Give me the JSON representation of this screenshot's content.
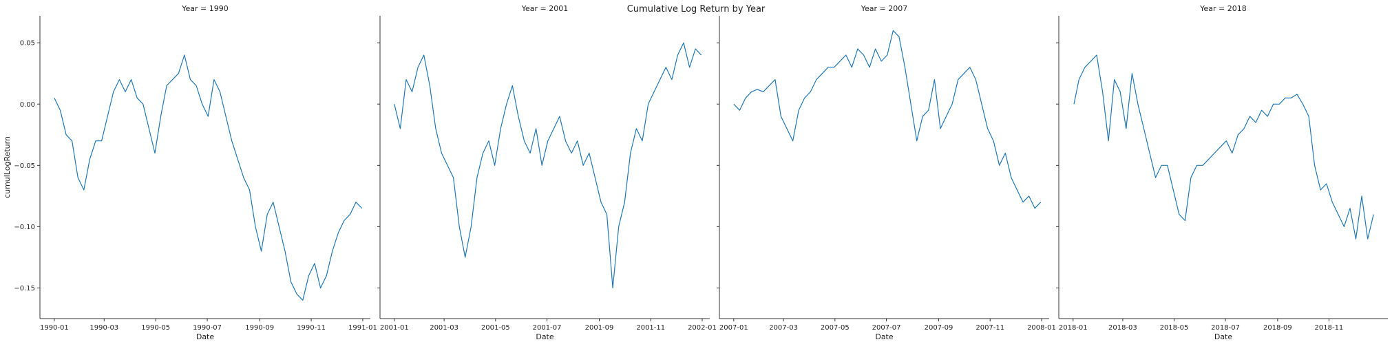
{
  "chart_data": {
    "type": "line",
    "title": "Cumulative Log Return by Year",
    "xlabel": "Date",
    "ylabel": "cumulLogReturn",
    "ylim": [
      -0.175,
      0.072
    ],
    "y_ticks": [
      0.05,
      0.0,
      -0.05,
      -0.1,
      -0.15
    ],
    "y_tick_labels": [
      "0.05",
      "0.00",
      "−0.05",
      "−0.10",
      "−0.15"
    ],
    "grid": false,
    "legend": "none",
    "color": "#1f77b4",
    "facets": [
      {
        "title": "Year = 1990",
        "x_ticks": [
          "1990-01-01",
          "1990-03-01",
          "1990-05-01",
          "1990-07-01",
          "1990-09-01",
          "1990-11-01",
          "1991-01-01"
        ],
        "x_tick_labels": [
          "1990-01",
          "1990-03",
          "1990-05",
          "1990-07",
          "1990-09",
          "1990-11",
          "1991-01"
        ],
        "xlim": [
          "1989-12-15",
          "1991-01-10"
        ],
        "x": [
          "1990-01-01",
          "1990-01-08",
          "1990-01-15",
          "1990-01-22",
          "1990-01-29",
          "1990-02-05",
          "1990-02-12",
          "1990-02-19",
          "1990-02-26",
          "1990-03-05",
          "1990-03-12",
          "1990-03-19",
          "1990-03-26",
          "1990-04-02",
          "1990-04-09",
          "1990-04-16",
          "1990-04-23",
          "1990-04-30",
          "1990-05-07",
          "1990-05-14",
          "1990-05-21",
          "1990-05-28",
          "1990-06-04",
          "1990-06-11",
          "1990-06-18",
          "1990-06-25",
          "1990-07-02",
          "1990-07-09",
          "1990-07-16",
          "1990-07-23",
          "1990-07-30",
          "1990-08-06",
          "1990-08-13",
          "1990-08-20",
          "1990-08-27",
          "1990-09-03",
          "1990-09-10",
          "1990-09-17",
          "1990-09-24",
          "1990-10-01",
          "1990-10-08",
          "1990-10-15",
          "1990-10-22",
          "1990-10-29",
          "1990-11-05",
          "1990-11-12",
          "1990-11-19",
          "1990-11-26",
          "1990-12-03",
          "1990-12-10",
          "1990-12-17",
          "1990-12-24",
          "1990-12-31"
        ],
        "y": [
          0.005,
          -0.005,
          -0.025,
          -0.03,
          -0.06,
          -0.07,
          -0.045,
          -0.03,
          -0.03,
          -0.01,
          0.01,
          0.02,
          0.01,
          0.02,
          0.005,
          0.0,
          -0.02,
          -0.04,
          -0.01,
          0.015,
          0.02,
          0.025,
          0.04,
          0.02,
          0.015,
          0.0,
          -0.01,
          0.02,
          0.01,
          -0.01,
          -0.03,
          -0.045,
          -0.06,
          -0.07,
          -0.1,
          -0.12,
          -0.09,
          -0.08,
          -0.1,
          -0.12,
          -0.145,
          -0.155,
          -0.16,
          -0.14,
          -0.13,
          -0.15,
          -0.14,
          -0.12,
          -0.105,
          -0.095,
          -0.09,
          -0.08,
          -0.085
        ]
      },
      {
        "title": "Year = 2001",
        "x_ticks": [
          "2001-01-01",
          "2001-03-01",
          "2001-05-01",
          "2001-07-01",
          "2001-09-01",
          "2001-11-01",
          "2002-01-01"
        ],
        "x_tick_labels": [
          "2001-01",
          "2001-03",
          "2001-05",
          "2001-07",
          "2001-09",
          "2001-11",
          "2002-01"
        ],
        "xlim": [
          "2000-12-15",
          "2002-01-10"
        ],
        "x": [
          "2001-01-01",
          "2001-01-08",
          "2001-01-15",
          "2001-01-22",
          "2001-01-29",
          "2001-02-05",
          "2001-02-12",
          "2001-02-19",
          "2001-02-26",
          "2001-03-05",
          "2001-03-12",
          "2001-03-19",
          "2001-03-26",
          "2001-04-02",
          "2001-04-09",
          "2001-04-16",
          "2001-04-23",
          "2001-04-30",
          "2001-05-07",
          "2001-05-14",
          "2001-05-21",
          "2001-05-28",
          "2001-06-04",
          "2001-06-11",
          "2001-06-18",
          "2001-06-25",
          "2001-07-02",
          "2001-07-09",
          "2001-07-16",
          "2001-07-23",
          "2001-07-30",
          "2001-08-06",
          "2001-08-13",
          "2001-08-20",
          "2001-08-27",
          "2001-09-03",
          "2001-09-10",
          "2001-09-17",
          "2001-09-24",
          "2001-10-01",
          "2001-10-08",
          "2001-10-15",
          "2001-10-22",
          "2001-10-29",
          "2001-11-05",
          "2001-11-12",
          "2001-11-19",
          "2001-11-26",
          "2001-12-03",
          "2001-12-10",
          "2001-12-17",
          "2001-12-24",
          "2001-12-31"
        ],
        "y": [
          0.0,
          -0.02,
          0.02,
          0.01,
          0.03,
          0.04,
          0.015,
          -0.02,
          -0.04,
          -0.05,
          -0.06,
          -0.1,
          -0.125,
          -0.1,
          -0.06,
          -0.04,
          -0.03,
          -0.05,
          -0.02,
          0.0,
          0.015,
          -0.01,
          -0.03,
          -0.04,
          -0.02,
          -0.05,
          -0.03,
          -0.02,
          -0.01,
          -0.03,
          -0.04,
          -0.03,
          -0.05,
          -0.04,
          -0.06,
          -0.08,
          -0.09,
          -0.15,
          -0.1,
          -0.08,
          -0.04,
          -0.02,
          -0.03,
          0.0,
          0.01,
          0.02,
          0.03,
          0.02,
          0.04,
          0.05,
          0.03,
          0.045,
          0.04
        ]
      },
      {
        "title": "Year = 2007",
        "x_ticks": [
          "2007-01-01",
          "2007-03-01",
          "2007-05-01",
          "2007-07-01",
          "2007-09-01",
          "2007-11-01",
          "2008-01-01"
        ],
        "x_tick_labels": [
          "2007-01",
          "2007-03",
          "2007-05",
          "2007-07",
          "2007-09",
          "2007-11",
          "2008-01"
        ],
        "xlim": [
          "2006-12-15",
          "2008-01-10"
        ],
        "x": [
          "2007-01-01",
          "2007-01-08",
          "2007-01-15",
          "2007-01-22",
          "2007-01-29",
          "2007-02-05",
          "2007-02-12",
          "2007-02-19",
          "2007-02-26",
          "2007-03-05",
          "2007-03-12",
          "2007-03-19",
          "2007-03-26",
          "2007-04-02",
          "2007-04-09",
          "2007-04-16",
          "2007-04-23",
          "2007-04-30",
          "2007-05-07",
          "2007-05-14",
          "2007-05-21",
          "2007-05-28",
          "2007-06-04",
          "2007-06-11",
          "2007-06-18",
          "2007-06-25",
          "2007-07-02",
          "2007-07-09",
          "2007-07-16",
          "2007-07-23",
          "2007-07-30",
          "2007-08-06",
          "2007-08-13",
          "2007-08-20",
          "2007-08-27",
          "2007-09-03",
          "2007-09-10",
          "2007-09-17",
          "2007-09-24",
          "2007-10-01",
          "2007-10-08",
          "2007-10-15",
          "2007-10-22",
          "2007-10-29",
          "2007-11-05",
          "2007-11-12",
          "2007-11-19",
          "2007-11-26",
          "2007-12-03",
          "2007-12-10",
          "2007-12-17",
          "2007-12-24",
          "2007-12-31"
        ],
        "y": [
          0.0,
          -0.005,
          0.005,
          0.01,
          0.012,
          0.01,
          0.015,
          0.02,
          -0.01,
          -0.02,
          -0.03,
          -0.005,
          0.005,
          0.01,
          0.02,
          0.025,
          0.03,
          0.03,
          0.035,
          0.04,
          0.03,
          0.045,
          0.04,
          0.03,
          0.045,
          0.035,
          0.04,
          0.06,
          0.055,
          0.03,
          0.0,
          -0.03,
          -0.01,
          -0.005,
          0.02,
          -0.02,
          -0.01,
          0.0,
          0.02,
          0.025,
          0.03,
          0.02,
          0.0,
          -0.02,
          -0.03,
          -0.05,
          -0.04,
          -0.06,
          -0.07,
          -0.08,
          -0.075,
          -0.085,
          -0.08
        ]
      },
      {
        "title": "Year = 2018",
        "x_ticks": [
          "2018-01-01",
          "2018-03-01",
          "2018-05-01",
          "2018-07-01",
          "2018-09-01",
          "2018-11-01"
        ],
        "x_tick_labels": [
          "2018-01",
          "2018-03",
          "2018-05",
          "2018-07",
          "2018-09",
          "2018-11"
        ],
        "xlim": [
          "2017-12-15",
          "2019-01-10"
        ],
        "x": [
          "2018-01-02",
          "2018-01-08",
          "2018-01-15",
          "2018-01-22",
          "2018-01-29",
          "2018-02-05",
          "2018-02-12",
          "2018-02-19",
          "2018-02-26",
          "2018-03-05",
          "2018-03-12",
          "2018-03-19",
          "2018-03-26",
          "2018-04-02",
          "2018-04-09",
          "2018-04-16",
          "2018-04-23",
          "2018-04-30",
          "2018-05-07",
          "2018-05-14",
          "2018-05-21",
          "2018-05-28",
          "2018-06-04",
          "2018-06-11",
          "2018-06-18",
          "2018-06-25",
          "2018-07-02",
          "2018-07-09",
          "2018-07-16",
          "2018-07-23",
          "2018-07-30",
          "2018-08-06",
          "2018-08-13",
          "2018-08-20",
          "2018-08-27",
          "2018-09-03",
          "2018-09-10",
          "2018-09-17",
          "2018-09-24",
          "2018-10-01",
          "2018-10-08",
          "2018-10-15",
          "2018-10-22",
          "2018-10-29",
          "2018-11-05",
          "2018-11-12",
          "2018-11-19",
          "2018-11-26",
          "2018-12-03",
          "2018-12-10",
          "2018-12-17",
          "2018-12-24"
        ],
        "y": [
          0.0,
          0.02,
          0.03,
          0.035,
          0.04,
          0.01,
          -0.03,
          0.02,
          0.01,
          -0.02,
          0.025,
          0.0,
          -0.02,
          -0.04,
          -0.06,
          -0.05,
          -0.05,
          -0.07,
          -0.09,
          -0.095,
          -0.06,
          -0.05,
          -0.05,
          -0.045,
          -0.04,
          -0.035,
          -0.03,
          -0.04,
          -0.025,
          -0.02,
          -0.01,
          -0.015,
          -0.005,
          -0.01,
          0.0,
          0.0,
          0.005,
          0.005,
          0.008,
          0.0,
          -0.01,
          -0.05,
          -0.07,
          -0.065,
          -0.08,
          -0.09,
          -0.1,
          -0.085,
          -0.11,
          -0.075,
          -0.11,
          -0.09
        ]
      }
    ]
  }
}
